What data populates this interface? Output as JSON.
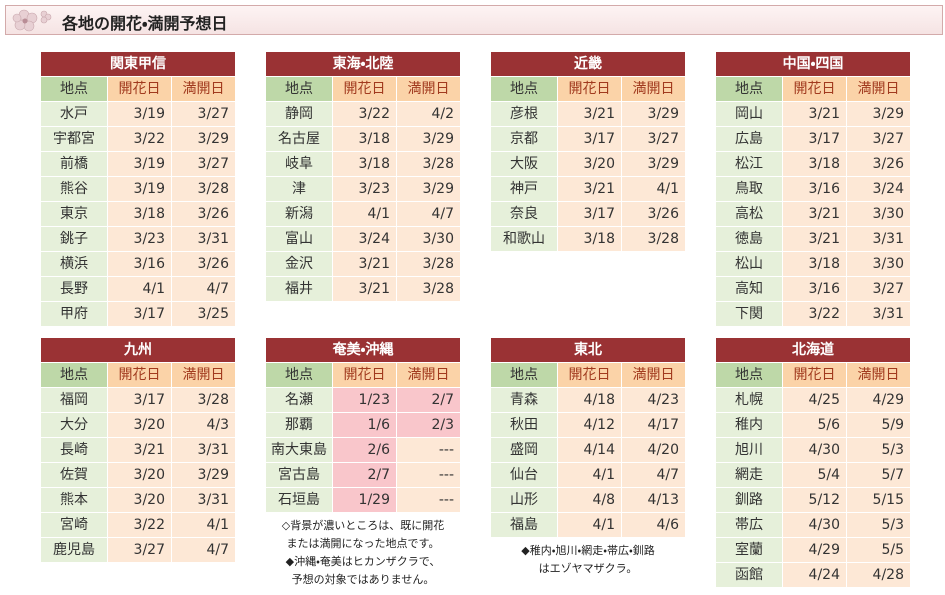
{
  "header": {
    "title": "各地の開花・満開予想日"
  },
  "columns": [
    "地点",
    "開花日",
    "満開日"
  ],
  "regions": [
    {
      "name": "関東甲信",
      "rows": [
        [
          "水戸",
          "3/19",
          "3/27"
        ],
        [
          "宇都宮",
          "3/22",
          "3/29"
        ],
        [
          "前橋",
          "3/19",
          "3/27"
        ],
        [
          "熊谷",
          "3/19",
          "3/28"
        ],
        [
          "東京",
          "3/18",
          "3/26"
        ],
        [
          "銚子",
          "3/23",
          "3/31"
        ],
        [
          "横浜",
          "3/16",
          "3/26"
        ],
        [
          "長野",
          "4/1",
          "4/7"
        ],
        [
          "甲府",
          "3/17",
          "3/25"
        ]
      ]
    },
    {
      "name": "東海・北陸",
      "rows": [
        [
          "静岡",
          "3/22",
          "4/2"
        ],
        [
          "名古屋",
          "3/18",
          "3/29"
        ],
        [
          "岐阜",
          "3/18",
          "3/28"
        ],
        [
          "津",
          "3/23",
          "3/29"
        ],
        [
          "新潟",
          "4/1",
          "4/7"
        ],
        [
          "富山",
          "3/24",
          "3/30"
        ],
        [
          "金沢",
          "3/21",
          "3/28"
        ],
        [
          "福井",
          "3/21",
          "3/28"
        ]
      ]
    },
    {
      "name": "近畿",
      "rows": [
        [
          "彦根",
          "3/21",
          "3/29"
        ],
        [
          "京都",
          "3/17",
          "3/27"
        ],
        [
          "大阪",
          "3/20",
          "3/29"
        ],
        [
          "神戸",
          "3/21",
          "4/1"
        ],
        [
          "奈良",
          "3/17",
          "3/26"
        ],
        [
          "和歌山",
          "3/18",
          "3/28"
        ]
      ]
    },
    {
      "name": "中国・四国",
      "rows": [
        [
          "岡山",
          "3/21",
          "3/29"
        ],
        [
          "広島",
          "3/17",
          "3/27"
        ],
        [
          "松江",
          "3/18",
          "3/26"
        ],
        [
          "鳥取",
          "3/16",
          "3/24"
        ],
        [
          "高松",
          "3/21",
          "3/30"
        ],
        [
          "徳島",
          "3/21",
          "3/31"
        ],
        [
          "松山",
          "3/18",
          "3/30"
        ],
        [
          "高知",
          "3/16",
          "3/27"
        ],
        [
          "下関",
          "3/22",
          "3/31"
        ]
      ]
    },
    {
      "name": "九州",
      "rows": [
        [
          "福岡",
          "3/17",
          "3/28"
        ],
        [
          "大分",
          "3/20",
          "4/3"
        ],
        [
          "長崎",
          "3/21",
          "3/31"
        ],
        [
          "佐賀",
          "3/20",
          "3/29"
        ],
        [
          "熊本",
          "3/20",
          "3/31"
        ],
        [
          "宮崎",
          "3/22",
          "4/1"
        ],
        [
          "鹿児島",
          "3/27",
          "4/7"
        ]
      ]
    },
    {
      "name": "奄美・沖縄",
      "rows": [
        [
          "名瀬",
          "1/23",
          "2/7"
        ],
        [
          "那覇",
          "1/6",
          "2/3"
        ],
        [
          "南大東島",
          "2/6",
          "---"
        ],
        [
          "宮古島",
          "2/7",
          "---"
        ],
        [
          "石垣島",
          "1/29",
          "---"
        ]
      ],
      "highlight": [
        [
          0,
          1
        ],
        [
          0,
          2
        ],
        [
          1,
          1
        ],
        [
          1,
          2
        ],
        [
          2,
          1
        ],
        [
          3,
          1
        ],
        [
          4,
          1
        ]
      ],
      "notes": [
        "◇背景が濃いところは、既に開花",
        "または満開になった地点です。",
        "◆沖縄・奄美はヒカンザクラで、",
        "予想の対象ではありません。"
      ]
    },
    {
      "name": "東北",
      "rows": [
        [
          "青森",
          "4/18",
          "4/23"
        ],
        [
          "秋田",
          "4/12",
          "4/17"
        ],
        [
          "盛岡",
          "4/14",
          "4/20"
        ],
        [
          "仙台",
          "4/1",
          "4/7"
        ],
        [
          "山形",
          "4/8",
          "4/13"
        ],
        [
          "福島",
          "4/1",
          "4/6"
        ]
      ],
      "notes": [
        "◆稚内・旭川・網走・帯広・釧路",
        "はエゾヤマザクラ。"
      ]
    },
    {
      "name": "北海道",
      "rows": [
        [
          "札幌",
          "4/25",
          "4/29"
        ],
        [
          "稚内",
          "5/6",
          "5/9"
        ],
        [
          "旭川",
          "4/30",
          "5/3"
        ],
        [
          "網走",
          "5/4",
          "5/7"
        ],
        [
          "釧路",
          "5/12",
          "5/15"
        ],
        [
          "帯広",
          "4/30",
          "5/3"
        ],
        [
          "室蘭",
          "4/29",
          "5/5"
        ],
        [
          "函館",
          "4/24",
          "4/28"
        ]
      ]
    }
  ]
}
